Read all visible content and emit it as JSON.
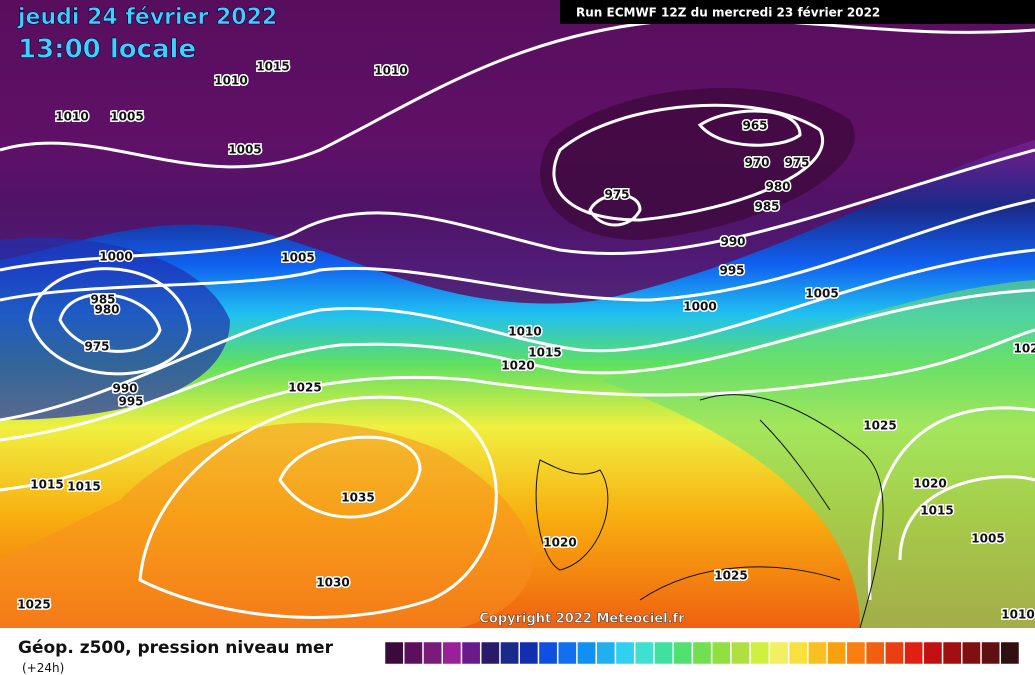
{
  "header": {
    "date": "jeudi 24 février 2022",
    "time": "13:00 locale",
    "run": "Run ECMWF 12Z du mercredi 23 février 2022"
  },
  "isobar_labels": [
    "1015",
    "1010",
    "1010",
    "1010",
    "1005",
    "1005",
    "965",
    "970",
    "975",
    "980",
    "985",
    "975",
    "990",
    "995",
    "1000",
    "1005",
    "985",
    "980",
    "975",
    "1000",
    "1005",
    "1010",
    "1015",
    "1020",
    "990",
    "995",
    "1025",
    "1025",
    "1015",
    "1015",
    "1035",
    "1020",
    "1015",
    "1005",
    "1020",
    "1030",
    "1025",
    "1025",
    "1010",
    "102"
  ],
  "copyright": "Copyright 2022 Meteociel.fr",
  "legend": {
    "title": "Géop. z500, pression niveau mer",
    "subtitle": "(+24h)"
  }
}
